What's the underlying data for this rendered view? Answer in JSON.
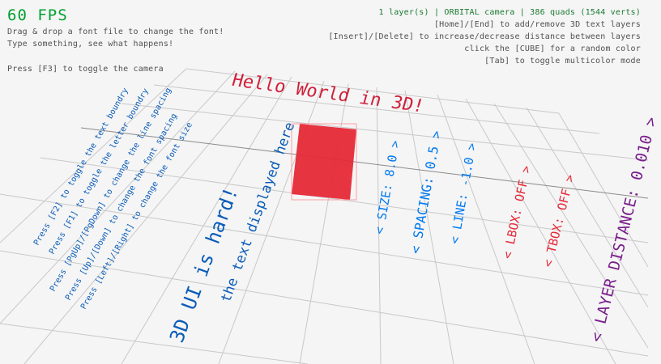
{
  "hud": {
    "fps": "60 FPS",
    "help_left": [
      "Drag & drop a font file to change the font!",
      "Type something, see what happens!",
      "Press [F3] to toggle the camera"
    ],
    "status": "1 layer(s) | ORBITAL camera |  386 quads (1544 verts)",
    "help_right": [
      "[Home]/[End] to add/remove 3D text layers",
      "[Insert]/[Delete] to increase/decrease distance between layers",
      "click the [CUBE] for a random color",
      "[Tab] to toggle multicolor mode"
    ]
  },
  "colors": {
    "fps": "#00a030",
    "status": "#1a7a30",
    "hud": "#505050",
    "cube": "#e62937",
    "blue_text": "#0a5cb8",
    "options": "#0079f1",
    "red_opts": "#e62937",
    "purple": "#7a1f8c"
  },
  "scene": {
    "title": "Hello World in 3D!",
    "instructions": [
      "Press [F2] to toggle the text boundry",
      "Press [F1] to toggle the letter boundry",
      "Press [PgUp]/[PgDown] to change the line spacing",
      "Press [Up]/[Down] to change the font spacing",
      "Press [Left]/[Right] to change the font size"
    ],
    "big_text_1": "the text displayed here",
    "big_text_2": "3D UI is hard!",
    "options": [
      "< SIZE: 8.0 >",
      "< SPACING: 0.5 >",
      "< LINE: -1.0 >",
      "< LBOX: OFF >",
      "< TBOX: OFF >",
      "< LAYER DISTANCE: 0.010 >"
    ]
  }
}
